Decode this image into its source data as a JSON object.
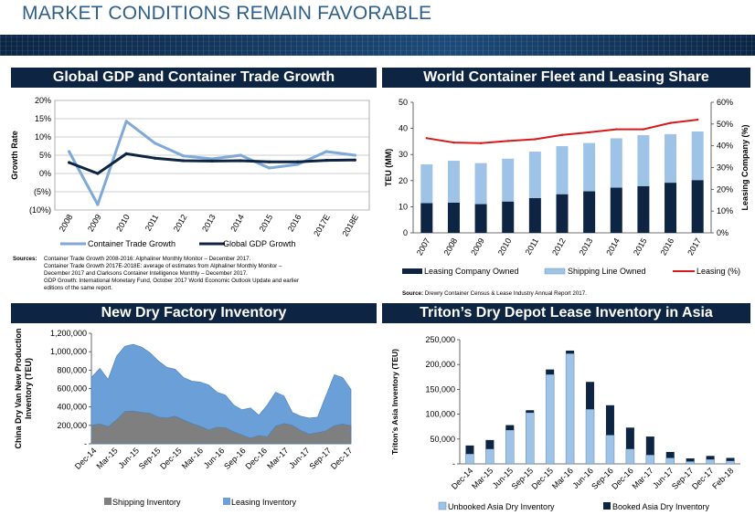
{
  "page": {
    "title": "MARKET CONDITIONS REMAIN FAVORABLE"
  },
  "chart_data": [
    {
      "id": "gdp",
      "type": "line",
      "title": "Global GDP and Container Trade Growth",
      "ylabel": "Growth Rate",
      "xlabel": "",
      "categories": [
        "2008",
        "2009",
        "2010",
        "2011",
        "2012",
        "2013",
        "2014",
        "2015",
        "2016",
        "2017E",
        "2018E"
      ],
      "yticks": [
        -10,
        -5,
        0,
        5,
        10,
        15,
        20
      ],
      "ytick_labels": [
        "(10%)",
        "(5%)",
        "0%",
        "5%",
        "10%",
        "15%",
        "20%"
      ],
      "ylim": [
        -10,
        20
      ],
      "grid": true,
      "legend": "bottom",
      "series": [
        {
          "name": "Container Trade Growth",
          "color": "#7fa9d9",
          "values": [
            6.0,
            -8.5,
            14.3,
            8.3,
            4.8,
            4.0,
            5.0,
            1.5,
            2.5,
            6.0,
            5.0
          ]
        },
        {
          "name": "Global GDP Growth",
          "color": "#0d2442",
          "values": [
            3.0,
            0.0,
            5.4,
            4.2,
            3.5,
            3.4,
            3.5,
            3.2,
            3.2,
            3.6,
            3.7
          ]
        }
      ],
      "sources_label": "Sources:",
      "sources_lines": [
        "Container Trade Growth 2008-2016: Alphaliner Monthly Monitor – December 2017.",
        "Container Trade Growth 2017E-2018E: average of estimates from Alphaliner Monthly Monitor –",
        "December 2017 and Clarksons Container Intelligence Monthly – December 2017.",
        "GDP Growth: International Monetary Fund, October 2017 World Economic Outlook Update and earlier",
        "editions of the same report."
      ]
    },
    {
      "id": "fleet",
      "type": "bar",
      "title": "World Container Fleet and Leasing Share",
      "ylabel": "TEU (MM)",
      "y2label": "Leasing Company (%)",
      "categories": [
        "2007",
        "2008",
        "2009",
        "2010",
        "2011",
        "2012",
        "2013",
        "2014",
        "2015",
        "2016",
        "2017"
      ],
      "yticks": [
        0,
        10,
        20,
        30,
        40,
        50
      ],
      "ytick_labels": [
        "0",
        "10",
        "20",
        "30",
        "40",
        "50"
      ],
      "y2ticks": [
        0,
        10,
        20,
        30,
        40,
        50,
        60
      ],
      "y2tick_labels": [
        "0%",
        "10%",
        "20%",
        "30%",
        "40%",
        "50%",
        "60%"
      ],
      "ylim": [
        0,
        50
      ],
      "y2lim": [
        0,
        60
      ],
      "legend": "bottom",
      "series": [
        {
          "name": "Leasing Company Owned",
          "color": "#0d2442",
          "values": [
            11.4,
            11.6,
            11.0,
            12.0,
            13.3,
            14.8,
            15.9,
            17.3,
            17.9,
            19.2,
            20.2
          ]
        },
        {
          "name": "Shipping Line Owned",
          "color": "#9ec3e6",
          "values": [
            14.8,
            16.0,
            15.7,
            16.4,
            17.8,
            18.4,
            18.5,
            18.9,
            19.5,
            18.6,
            18.6
          ]
        },
        {
          "name": "Leasing (%)",
          "color": "#d7191c",
          "axis": "y2",
          "values": [
            43.5,
            41.5,
            41.2,
            42.2,
            43.0,
            45.0,
            46.2,
            47.6,
            47.6,
            50.5,
            52.0
          ]
        }
      ],
      "source_label": "Source:",
      "source_text": "Drewry Container Census & Lease Industry Annual Report 2017."
    },
    {
      "id": "factory",
      "type": "area",
      "title": "New Dry Factory Inventory",
      "ylabel_lines": [
        "China Dry Van New Production",
        "Inventory (TEU)"
      ],
      "yticks": [
        0,
        200000,
        400000,
        600000,
        800000,
        1000000,
        1200000
      ],
      "ytick_labels": [
        "-",
        "200,000",
        "400,000",
        "600,000",
        "800,000",
        "1,000,000",
        "1,200,000"
      ],
      "ylim": [
        0,
        1200000
      ],
      "x_labels": [
        "Dec-14",
        "Mar-15",
        "Jun-15",
        "Sep-15",
        "Dec-15",
        "Mar-16",
        "Jun-16",
        "Sep-16",
        "Dec-16",
        "Mar-17",
        "Jun-17",
        "Sep-17",
        "Dec-17"
      ],
      "legend": "bottom",
      "series": [
        {
          "name": "Shipping Inventory",
          "color": "#7f7f7f",
          "values": [
            200000,
            215000,
            185000,
            260000,
            350000,
            355000,
            340000,
            330000,
            290000,
            280000,
            300000,
            260000,
            220000,
            190000,
            150000,
            180000,
            175000,
            130000,
            95000,
            60000,
            90000,
            75000,
            190000,
            220000,
            200000,
            145000,
            105000,
            120000,
            140000,
            195000,
            215000,
            195000
          ]
        },
        {
          "name": "Leasing Inventory",
          "color": "#6a9fd8",
          "values": [
            720000,
            820000,
            700000,
            950000,
            1060000,
            1080000,
            1050000,
            990000,
            900000,
            830000,
            810000,
            720000,
            680000,
            670000,
            640000,
            560000,
            530000,
            420000,
            370000,
            390000,
            310000,
            420000,
            560000,
            520000,
            340000,
            300000,
            280000,
            290000,
            520000,
            750000,
            720000,
            590000
          ]
        }
      ]
    },
    {
      "id": "depot",
      "type": "bar",
      "title": "Triton’s Dry Depot Lease Inventory in Asia",
      "ylabel": "Triton’s Asia Inventory (TEU)",
      "categories": [
        "Dec-14",
        "Mar-15",
        "Jun-15",
        "Sep-15",
        "Dec-15",
        "Mar-16",
        "Jun-16",
        "Sep-16",
        "Dec-16",
        "Mar-17",
        "Jun-17",
        "Sep-17",
        "Dec-17",
        "Feb-18"
      ],
      "yticks": [
        0,
        50000,
        100000,
        150000,
        200000,
        250000
      ],
      "ytick_labels": [
        "-",
        "50,000",
        "100,000",
        "150,000",
        "200,000",
        "250,000"
      ],
      "ylim": [
        0,
        250000
      ],
      "legend": "bottom",
      "series": [
        {
          "name": "Unbooked Asia Dry Inventory",
          "color": "#9ec3e6",
          "values": [
            20000,
            30000,
            68000,
            103000,
            180000,
            222000,
            110000,
            58000,
            30000,
            18000,
            12000,
            5000,
            9000,
            6000
          ]
        },
        {
          "name": "Booked Asia Dry Inventory",
          "color": "#0d2442",
          "values": [
            17000,
            18000,
            10000,
            5000,
            10000,
            6000,
            55000,
            60000,
            43000,
            37000,
            12000,
            6000,
            7000,
            6000
          ]
        }
      ]
    }
  ]
}
